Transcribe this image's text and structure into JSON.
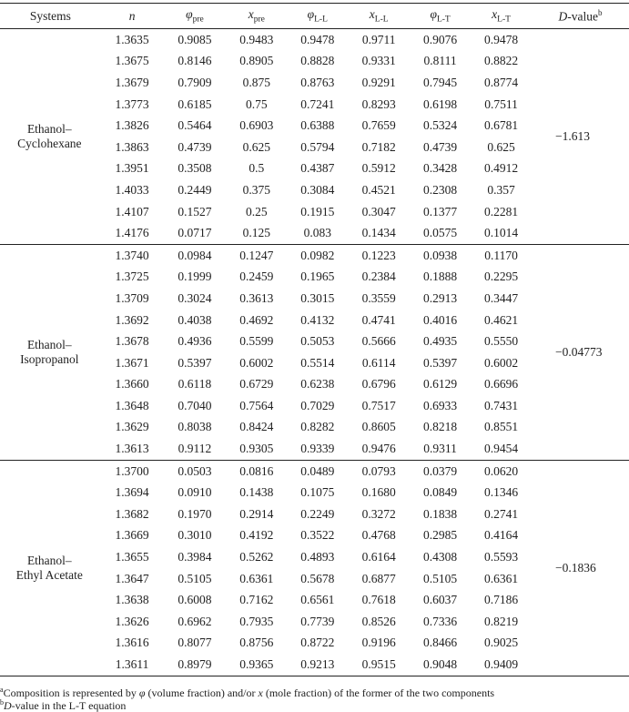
{
  "header": [
    {
      "main": "Systems",
      "sub": "",
      "italic": false
    },
    {
      "main": "n",
      "sub": "",
      "italic": true
    },
    {
      "main": "φ",
      "sub": "pre",
      "italic": true
    },
    {
      "main": "x",
      "sub": "pre",
      "italic": true
    },
    {
      "main": "φ",
      "sub": "L-L",
      "italic": true
    },
    {
      "main": "x",
      "sub": "L-L",
      "italic": true
    },
    {
      "main": "φ",
      "sub": "L-T",
      "italic": true
    },
    {
      "main": "x",
      "sub": "L-T",
      "italic": true
    },
    {
      "main": "D",
      "sub": "",
      "italic": true,
      "suffix": "-value",
      "sup": "b"
    }
  ],
  "groups": [
    {
      "system": [
        "Ethanol–",
        "Cyclohexane"
      ],
      "d_value": "−1.613",
      "rows": [
        [
          "1.3635",
          "0.9085",
          "0.9483",
          "0.9478",
          "0.9711",
          "0.9076",
          "0.9478"
        ],
        [
          "1.3675",
          "0.8146",
          "0.8905",
          "0.8828",
          "0.9331",
          "0.8111",
          "0.8822"
        ],
        [
          "1.3679",
          "0.7909",
          "0.875",
          "0.8763",
          "0.9291",
          "0.7945",
          "0.8774"
        ],
        [
          "1.3773",
          "0.6185",
          "0.75",
          "0.7241",
          "0.8293",
          "0.6198",
          "0.7511"
        ],
        [
          "1.3826",
          "0.5464",
          "0.6903",
          "0.6388",
          "0.7659",
          "0.5324",
          "0.6781"
        ],
        [
          "1.3863",
          "0.4739",
          "0.625",
          "0.5794",
          "0.7182",
          "0.4739",
          "0.625"
        ],
        [
          "1.3951",
          "0.3508",
          "0.5",
          "0.4387",
          "0.5912",
          "0.3428",
          "0.4912"
        ],
        [
          "1.4033",
          "0.2449",
          "0.375",
          "0.3084",
          "0.4521",
          "0.2308",
          "0.357"
        ],
        [
          "1.4107",
          "0.1527",
          "0.25",
          "0.1915",
          "0.3047",
          "0.1377",
          "0.2281"
        ],
        [
          "1.4176",
          "0.0717",
          "0.125",
          "0.083",
          "0.1434",
          "0.0575",
          "0.1014"
        ]
      ]
    },
    {
      "system": [
        "Ethanol–",
        "Isopropanol"
      ],
      "d_value": "−0.04773",
      "rows": [
        [
          "1.3740",
          "0.0984",
          "0.1247",
          "0.0982",
          "0.1223",
          "0.0938",
          "0.1170"
        ],
        [
          "1.3725",
          "0.1999",
          "0.2459",
          "0.1965",
          "0.2384",
          "0.1888",
          "0.2295"
        ],
        [
          "1.3709",
          "0.3024",
          "0.3613",
          "0.3015",
          "0.3559",
          "0.2913",
          "0.3447"
        ],
        [
          "1.3692",
          "0.4038",
          "0.4692",
          "0.4132",
          "0.4741",
          "0.4016",
          "0.4621"
        ],
        [
          "1.3678",
          "0.4936",
          "0.5599",
          "0.5053",
          "0.5666",
          "0.4935",
          "0.5550"
        ],
        [
          "1.3671",
          "0.5397",
          "0.6002",
          "0.5514",
          "0.6114",
          "0.5397",
          "0.6002"
        ],
        [
          "1.3660",
          "0.6118",
          "0.6729",
          "0.6238",
          "0.6796",
          "0.6129",
          "0.6696"
        ],
        [
          "1.3648",
          "0.7040",
          "0.7564",
          "0.7029",
          "0.7517",
          "0.6933",
          "0.7431"
        ],
        [
          "1.3629",
          "0.8038",
          "0.8424",
          "0.8282",
          "0.8605",
          "0.8218",
          "0.8551"
        ],
        [
          "1.3613",
          "0.9112",
          "0.9305",
          "0.9339",
          "0.9476",
          "0.9311",
          "0.9454"
        ]
      ]
    },
    {
      "system": [
        "Ethanol–",
        "Ethyl Acetate"
      ],
      "d_value": "−0.1836",
      "rows": [
        [
          "1.3700",
          "0.0503",
          "0.0816",
          "0.0489",
          "0.0793",
          "0.0379",
          "0.0620"
        ],
        [
          "1.3694",
          "0.0910",
          "0.1438",
          "0.1075",
          "0.1680",
          "0.0849",
          "0.1346"
        ],
        [
          "1.3682",
          "0.1970",
          "0.2914",
          "0.2249",
          "0.3272",
          "0.1838",
          "0.2741"
        ],
        [
          "1.3669",
          "0.3010",
          "0.4192",
          "0.3522",
          "0.4768",
          "0.2985",
          "0.4164"
        ],
        [
          "1.3655",
          "0.3984",
          "0.5262",
          "0.4893",
          "0.6164",
          "0.4308",
          "0.5593"
        ],
        [
          "1.3647",
          "0.5105",
          "0.6361",
          "0.5678",
          "0.6877",
          "0.5105",
          "0.6361"
        ],
        [
          "1.3638",
          "0.6008",
          "0.7162",
          "0.6561",
          "0.7618",
          "0.6037",
          "0.7186"
        ],
        [
          "1.3626",
          "0.6962",
          "0.7935",
          "0.7739",
          "0.8526",
          "0.7336",
          "0.8219"
        ],
        [
          "1.3616",
          "0.8077",
          "0.8756",
          "0.8722",
          "0.9196",
          "0.8466",
          "0.9025"
        ],
        [
          "1.3611",
          "0.8979",
          "0.9365",
          "0.9213",
          "0.9515",
          "0.9048",
          "0.9409"
        ]
      ]
    }
  ],
  "footnotes": {
    "a": {
      "mark": "a",
      "parts": [
        "Composition is represented by ",
        "φ",
        " (volume fraction) and/or ",
        "x",
        " (mole fraction) of the former of the two components"
      ]
    },
    "b": {
      "mark": "b",
      "parts": [
        "D",
        "-value in the L-T equation"
      ]
    }
  }
}
